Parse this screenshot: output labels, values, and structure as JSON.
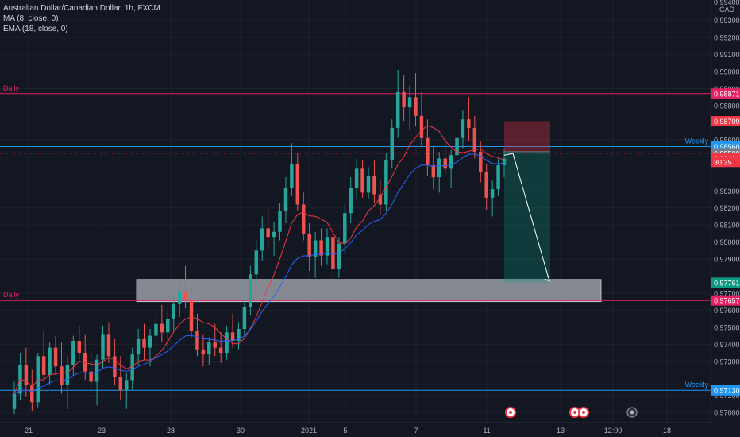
{
  "legend": {
    "title": "Australian Dollar/Canadian Dollar, 1h, FXCM",
    "ma": "MA (8, close, 0)",
    "ema": "EMA (18, close, 0)"
  },
  "colors": {
    "background": "#131722",
    "up": "#26a69a",
    "down": "#ef5350",
    "ma": "#f23645",
    "ema": "#2962ff",
    "daily_line": "#e91e63",
    "weekly_line": "#2196f3",
    "zone": "#b2b5be"
  },
  "chart_data": {
    "type": "candlestick",
    "symbol": "AUDCAD",
    "timeframe": "1h",
    "y_range": [
      0.9694,
      0.9942
    ],
    "y_axis_unit": "CAD",
    "y_ticks": [
      "0.99300",
      "0.99200",
      "0.99100",
      "0.99000",
      "0.98900",
      "0.98800",
      "0.98600",
      "0.98300",
      "0.98200",
      "0.98100",
      "0.98000",
      "0.97900",
      "0.97700",
      "0.97600",
      "0.97500",
      "0.97400",
      "0.97300",
      "0.97100",
      "0.97000"
    ],
    "y_ticks_partial": [
      "0.99400"
    ],
    "x_ticks": [
      "21",
      "23",
      "28",
      "30",
      "2021",
      "5",
      "7",
      "11",
      "13",
      "12:00",
      "18"
    ],
    "horizontal_levels": [
      {
        "label": "Daily",
        "value": 0.98871,
        "price_tag": "0.98871",
        "color": "#e91e63"
      },
      {
        "label": "Weekly",
        "value": 0.9856,
        "price_tag": "0.98560",
        "color": "#2196f3"
      },
      {
        "label": "Daily",
        "value": 0.97657,
        "price_tag": "0.97657",
        "color": "#e91e63"
      },
      {
        "label": "Weekly",
        "value": 0.9713,
        "price_tag": "0.97130",
        "color": "#2196f3"
      }
    ],
    "price_tags": [
      {
        "value": 0.98709,
        "text": "0.98709",
        "color": "#f23645"
      },
      {
        "value": 0.9852,
        "text": "0.98520",
        "color": "#787b86"
      },
      {
        "value": 0.98491,
        "text": "0.98491",
        "color": "#f23645"
      },
      {
        "value": 0.9847,
        "text": "30:35",
        "color": "#f23645"
      },
      {
        "value": 0.97761,
        "text": "0.97761",
        "color": "#089981"
      }
    ],
    "support_zone": {
      "top": 0.9778,
      "bottom": 0.9765
    },
    "short_position": {
      "entry": 0.9853,
      "stop": 0.98709,
      "target": 0.97761
    },
    "current_price": 0.98491,
    "candles": [
      [
        0.9702,
        0.9718,
        0.9699,
        0.9711
      ],
      [
        0.9711,
        0.9735,
        0.9707,
        0.9728
      ],
      [
        0.9728,
        0.9738,
        0.9709,
        0.9716
      ],
      [
        0.9716,
        0.9725,
        0.9701,
        0.9706
      ],
      [
        0.9706,
        0.9735,
        0.9703,
        0.9733
      ],
      [
        0.9733,
        0.9748,
        0.9718,
        0.9722
      ],
      [
        0.9722,
        0.9741,
        0.9716,
        0.9738
      ],
      [
        0.9738,
        0.9745,
        0.9722,
        0.9727
      ],
      [
        0.9727,
        0.9741,
        0.9711,
        0.9716
      ],
      [
        0.9716,
        0.9733,
        0.9702,
        0.9728
      ],
      [
        0.9728,
        0.9745,
        0.9722,
        0.9742
      ],
      [
        0.9742,
        0.9751,
        0.9731,
        0.9735
      ],
      [
        0.9735,
        0.9746,
        0.9719,
        0.9724
      ],
      [
        0.9724,
        0.9736,
        0.9712,
        0.9718
      ],
      [
        0.9718,
        0.9734,
        0.9704,
        0.9731
      ],
      [
        0.9731,
        0.9751,
        0.9726,
        0.9746
      ],
      [
        0.9746,
        0.9753,
        0.9729,
        0.9733
      ],
      [
        0.9733,
        0.9743,
        0.9716,
        0.9721
      ],
      [
        0.9721,
        0.9733,
        0.9707,
        0.9713
      ],
      [
        0.9713,
        0.9723,
        0.9702,
        0.9719
      ],
      [
        0.9719,
        0.9738,
        0.9713,
        0.9734
      ],
      [
        0.9734,
        0.9749,
        0.9728,
        0.9743
      ],
      [
        0.9743,
        0.9752,
        0.9731,
        0.9738
      ],
      [
        0.9738,
        0.9749,
        0.9727,
        0.9745
      ],
      [
        0.9745,
        0.9758,
        0.9736,
        0.9752
      ],
      [
        0.9752,
        0.9763,
        0.9741,
        0.9747
      ],
      [
        0.9747,
        0.9759,
        0.9738,
        0.9755
      ],
      [
        0.9755,
        0.9769,
        0.9748,
        0.9764
      ],
      [
        0.9764,
        0.9778,
        0.9756,
        0.9771
      ],
      [
        0.9771,
        0.9786,
        0.9761,
        0.9766
      ],
      [
        0.9766,
        0.9775,
        0.9744,
        0.9748
      ],
      [
        0.9748,
        0.9758,
        0.9733,
        0.9737
      ],
      [
        0.9737,
        0.9746,
        0.9727,
        0.9734
      ],
      [
        0.9734,
        0.9744,
        0.9728,
        0.9741
      ],
      [
        0.9741,
        0.9752,
        0.9733,
        0.9738
      ],
      [
        0.9738,
        0.9747,
        0.9729,
        0.9735
      ],
      [
        0.9735,
        0.9751,
        0.9731,
        0.9747
      ],
      [
        0.9747,
        0.9758,
        0.9738,
        0.9742
      ],
      [
        0.9742,
        0.9753,
        0.9737,
        0.9749
      ],
      [
        0.9749,
        0.9766,
        0.9745,
        0.9762
      ],
      [
        0.9762,
        0.9786,
        0.9757,
        0.9781
      ],
      [
        0.9781,
        0.9801,
        0.9775,
        0.9795
      ],
      [
        0.9795,
        0.9815,
        0.9789,
        0.9808
      ],
      [
        0.9808,
        0.9821,
        0.9796,
        0.9803
      ],
      [
        0.9803,
        0.9812,
        0.9792,
        0.9806
      ],
      [
        0.9806,
        0.9823,
        0.9801,
        0.9818
      ],
      [
        0.9818,
        0.9838,
        0.9811,
        0.9832
      ],
      [
        0.9832,
        0.9858,
        0.9827,
        0.9846
      ],
      [
        0.9846,
        0.9852,
        0.9818,
        0.9822
      ],
      [
        0.9822,
        0.9829,
        0.9801,
        0.9805
      ],
      [
        0.9805,
        0.9811,
        0.9783,
        0.9791
      ],
      [
        0.9791,
        0.9806,
        0.9779,
        0.9801
      ],
      [
        0.9801,
        0.9808,
        0.9786,
        0.9792
      ],
      [
        0.9792,
        0.9808,
        0.9787,
        0.9803
      ],
      [
        0.9803,
        0.9806,
        0.9778,
        0.9784
      ],
      [
        0.9784,
        0.9803,
        0.9779,
        0.9799
      ],
      [
        0.9799,
        0.9822,
        0.9793,
        0.9817
      ],
      [
        0.9817,
        0.9838,
        0.9811,
        0.9832
      ],
      [
        0.9832,
        0.9849,
        0.9825,
        0.9843
      ],
      [
        0.9843,
        0.9848,
        0.9826,
        0.9829
      ],
      [
        0.9829,
        0.9844,
        0.9825,
        0.9839
      ],
      [
        0.9839,
        0.9848,
        0.9823,
        0.9828
      ],
      [
        0.9828,
        0.9836,
        0.9816,
        0.9822
      ],
      [
        0.9822,
        0.9852,
        0.9818,
        0.9848
      ],
      [
        0.9848,
        0.9872,
        0.9843,
        0.9867
      ],
      [
        0.9867,
        0.9901,
        0.9861,
        0.9888
      ],
      [
        0.9888,
        0.9898,
        0.9871,
        0.9879
      ],
      [
        0.9879,
        0.9892,
        0.9866,
        0.9885
      ],
      [
        0.9885,
        0.9899,
        0.9868,
        0.9874
      ],
      [
        0.9874,
        0.9888,
        0.9856,
        0.9861
      ],
      [
        0.9861,
        0.9872,
        0.9839,
        0.9845
      ],
      [
        0.9845,
        0.9856,
        0.9831,
        0.9838
      ],
      [
        0.9838,
        0.9853,
        0.9829,
        0.9849
      ],
      [
        0.9849,
        0.9861,
        0.9839,
        0.9843
      ],
      [
        0.9843,
        0.9854,
        0.9832,
        0.9851
      ],
      [
        0.9851,
        0.9866,
        0.9845,
        0.9861
      ],
      [
        0.9861,
        0.9877,
        0.9855,
        0.9872
      ],
      [
        0.9872,
        0.9885,
        0.9859,
        0.9867
      ],
      [
        0.9867,
        0.9874,
        0.9849,
        0.9853
      ],
      [
        0.9853,
        0.9859,
        0.9835,
        0.9841
      ],
      [
        0.9841,
        0.9846,
        0.9819,
        0.9826
      ],
      [
        0.9826,
        0.9836,
        0.9815,
        0.9831
      ],
      [
        0.9831,
        0.9849,
        0.9827,
        0.9845
      ],
      [
        0.9845,
        0.9855,
        0.9838,
        0.9849
      ]
    ]
  }
}
